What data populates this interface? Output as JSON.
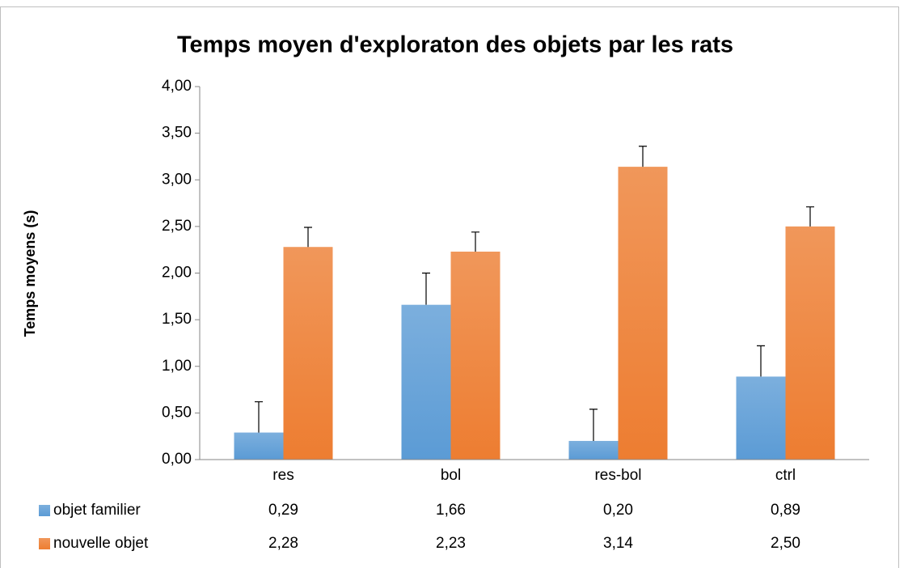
{
  "chart_data": {
    "type": "bar",
    "title": "Temps moyen d'exploraton des objets par les rats",
    "y_label": "Temps moyens (s)",
    "categories": [
      "res",
      "bol",
      "res-bol",
      "ctrl"
    ],
    "series": [
      {
        "name": "objet familier",
        "color": "#5b9bd5",
        "values": [
          0.29,
          1.66,
          0.2,
          0.89
        ],
        "errors": [
          0.33,
          0.34,
          0.34,
          0.33
        ],
        "value_labels": [
          "0,29",
          "1,66",
          "0,20",
          "0,89"
        ]
      },
      {
        "name": "nouvelle objet",
        "color": "#ed7d31",
        "values": [
          2.28,
          2.23,
          3.14,
          2.5
        ],
        "errors": [
          0.21,
          0.21,
          0.22,
          0.21
        ],
        "value_labels": [
          "2,28",
          "2,23",
          "3,14",
          "2,50"
        ]
      }
    ],
    "ylim": [
      0,
      4
    ],
    "yticks": [
      {
        "value": 0,
        "label": "0,00"
      },
      {
        "value": 0.5,
        "label": "0,50"
      },
      {
        "value": 1,
        "label": "1,00"
      },
      {
        "value": 1.5,
        "label": "1,50"
      },
      {
        "value": 2,
        "label": "2,00"
      },
      {
        "value": 2.5,
        "label": "2,50"
      },
      {
        "value": 3,
        "label": "3,00"
      },
      {
        "value": 3.5,
        "label": "3,50"
      },
      {
        "value": 4,
        "label": "4,00"
      }
    ],
    "grid": false,
    "data_table": true
  }
}
